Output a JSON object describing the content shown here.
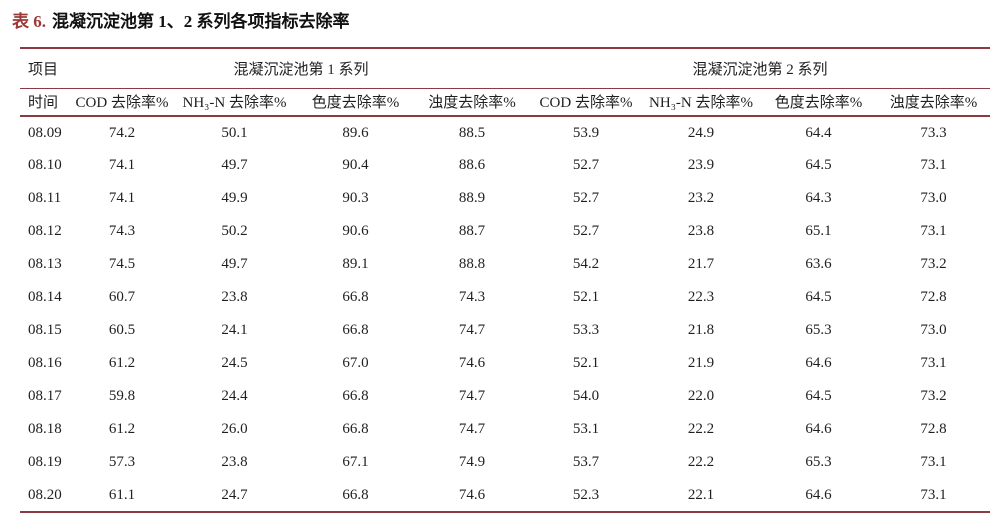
{
  "page": {
    "title_label": "表 6.",
    "title_text": "混凝沉淀池第 1、2 系列各项指标去除率"
  },
  "table": {
    "group": {
      "item": "项目",
      "series": [
        "混凝沉淀池第 1 系列",
        "混凝沉淀池第 2 系列"
      ]
    },
    "columns": [
      "时间",
      "COD 去除率%",
      "NH₃-N 去除率%",
      "色度去除率%",
      "浊度去除率%",
      "COD 去除率%",
      "NH₃-N 去除率%",
      "色度去除率%",
      "浊度去除率%"
    ],
    "rows": [
      [
        "08.09",
        "74.2",
        "50.1",
        "89.6",
        "88.5",
        "53.9",
        "24.9",
        "64.4",
        "73.3"
      ],
      [
        "08.10",
        "74.1",
        "49.7",
        "90.4",
        "88.6",
        "52.7",
        "23.9",
        "64.5",
        "73.1"
      ],
      [
        "08.11",
        "74.1",
        "49.9",
        "90.3",
        "88.9",
        "52.7",
        "23.2",
        "64.3",
        "73.0"
      ],
      [
        "08.12",
        "74.3",
        "50.2",
        "90.6",
        "88.7",
        "52.7",
        "23.8",
        "65.1",
        "73.1"
      ],
      [
        "08.13",
        "74.5",
        "49.7",
        "89.1",
        "88.8",
        "54.2",
        "21.7",
        "63.6",
        "73.2"
      ],
      [
        "08.14",
        "60.7",
        "23.8",
        "66.8",
        "74.3",
        "52.1",
        "22.3",
        "64.5",
        "72.8"
      ],
      [
        "08.15",
        "60.5",
        "24.1",
        "66.8",
        "74.7",
        "53.3",
        "21.8",
        "65.3",
        "73.0"
      ],
      [
        "08.16",
        "61.2",
        "24.5",
        "67.0",
        "74.6",
        "52.1",
        "21.9",
        "64.6",
        "73.1"
      ],
      [
        "08.17",
        "59.8",
        "24.4",
        "66.8",
        "74.7",
        "54.0",
        "22.0",
        "64.5",
        "73.2"
      ],
      [
        "08.18",
        "61.2",
        "26.0",
        "66.8",
        "74.7",
        "53.1",
        "22.2",
        "64.6",
        "72.8"
      ],
      [
        "08.19",
        "57.3",
        "23.8",
        "67.1",
        "74.9",
        "53.7",
        "22.2",
        "65.3",
        "73.1"
      ],
      [
        "08.20",
        "61.1",
        "24.7",
        "66.8",
        "74.6",
        "52.3",
        "22.1",
        "64.6",
        "73.1"
      ]
    ]
  },
  "colors": {
    "title_accent": "#9a3b39",
    "rule": "#8a3b42",
    "text": "#1f1f1f"
  }
}
